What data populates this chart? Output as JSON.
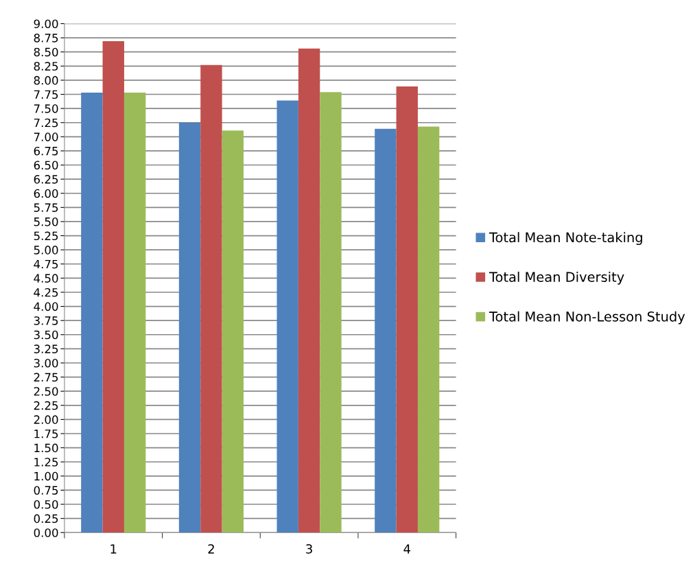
{
  "chart_data": {
    "type": "bar",
    "categories": [
      "1",
      "2",
      "3",
      "4"
    ],
    "series": [
      {
        "name": "Total Mean Note-taking",
        "color": "#4f81bd",
        "values": [
          7.78,
          7.25,
          7.64,
          7.14
        ]
      },
      {
        "name": "Total Mean Diversity",
        "color": "#c0504d",
        "values": [
          8.69,
          8.27,
          8.56,
          7.89
        ]
      },
      {
        "name": "Total Mean Non-Lesson Study",
        "color": "#9bbb59",
        "values": [
          7.78,
          7.11,
          7.79,
          7.18
        ]
      }
    ],
    "ylim": [
      0,
      9
    ],
    "yticks": [
      {
        "value": 0,
        "label": "0.00"
      },
      {
        "value": 0.25,
        "label": "0.25"
      },
      {
        "value": 0.5,
        "label": "0.50"
      },
      {
        "value": 0.75,
        "label": "0.75"
      },
      {
        "value": 1,
        "label": "1.00"
      },
      {
        "value": 1.25,
        "label": "1.25"
      },
      {
        "value": 1.5,
        "label": "1.50"
      },
      {
        "value": 1.75,
        "label": "1.75"
      },
      {
        "value": 2,
        "label": "2.00"
      },
      {
        "value": 2.25,
        "label": "2.25"
      },
      {
        "value": 2.5,
        "label": "2.50"
      },
      {
        "value": 2.75,
        "label": "2.75"
      },
      {
        "value": 3,
        "label": "3.00"
      },
      {
        "value": 3.25,
        "label": "3.25"
      },
      {
        "value": 3.5,
        "label": "3.50"
      },
      {
        "value": 3.75,
        "label": "3.75"
      },
      {
        "value": 4,
        "label": "4.00"
      },
      {
        "value": 4.25,
        "label": "4.25"
      },
      {
        "value": 4.5,
        "label": "4.50"
      },
      {
        "value": 4.75,
        "label": "4.75"
      },
      {
        "value": 5,
        "label": "5.00"
      },
      {
        "value": 5.25,
        "label": "5.25"
      },
      {
        "value": 5.5,
        "label": "5.50"
      },
      {
        "value": 5.75,
        "label": "5.75"
      },
      {
        "value": 6,
        "label": "6.00"
      },
      {
        "value": 6.25,
        "label": "6.25"
      },
      {
        "value": 6.5,
        "label": "6.50"
      },
      {
        "value": 6.75,
        "label": "6.75"
      },
      {
        "value": 7,
        "label": "7.00"
      },
      {
        "value": 7.25,
        "label": "7.25"
      },
      {
        "value": 7.5,
        "label": "7.50"
      },
      {
        "value": 7.75,
        "label": "7.75"
      },
      {
        "value": 8,
        "label": "8.00"
      },
      {
        "value": 8.25,
        "label": "8.25"
      },
      {
        "value": 8.5,
        "label": "8.50"
      },
      {
        "value": 8.75,
        "label": "8.75"
      },
      {
        "value": 9,
        "label": "9.00"
      }
    ],
    "grid": "y",
    "legend": "right"
  }
}
